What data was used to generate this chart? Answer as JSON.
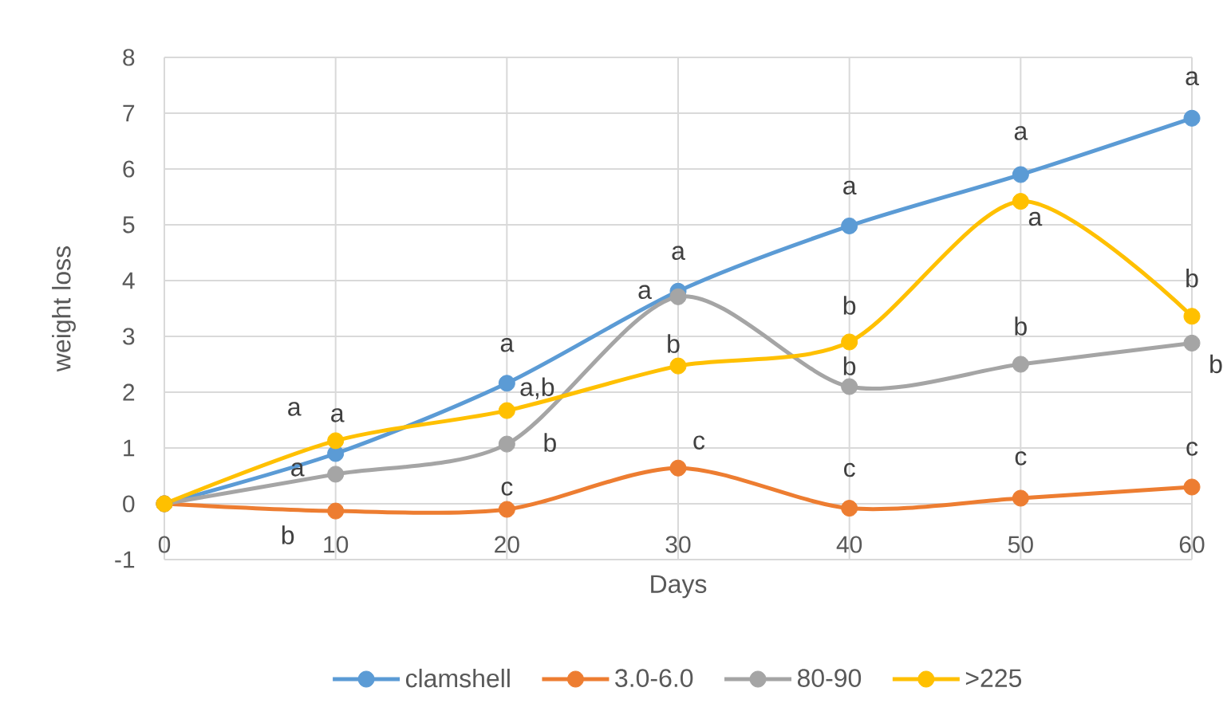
{
  "chart_data": {
    "type": "line",
    "xlabel": "Days",
    "ylabel": "weight loss",
    "x": [
      0,
      10,
      20,
      30,
      40,
      50,
      60
    ],
    "xlim": [
      0,
      60
    ],
    "xticks": [
      0,
      10,
      20,
      30,
      40,
      50,
      60
    ],
    "ylim": [
      -1,
      8
    ],
    "yticks": [
      -1,
      0,
      1,
      2,
      3,
      4,
      5,
      6,
      7,
      8
    ],
    "grid": true,
    "legend": "bottom",
    "marker": "circle",
    "line_style": "solid",
    "series": [
      {
        "name": "clamshell",
        "color": "#5b9bd5",
        "values": [
          0,
          0.9,
          2.16,
          3.81,
          4.98,
          5.9,
          6.91
        ]
      },
      {
        "name": "3.0-6.0",
        "color": "#ed7d31",
        "values": [
          0,
          -0.13,
          -0.1,
          0.64,
          -0.08,
          0.1,
          0.3
        ]
      },
      {
        "name": "80-90",
        "color": "#a5a5a5",
        "values": [
          0,
          0.53,
          1.07,
          3.71,
          2.1,
          2.5,
          2.88
        ]
      },
      {
        "name": ">225",
        "color": "#ffc000",
        "values": [
          0,
          1.13,
          1.67,
          2.47,
          2.9,
          5.42,
          3.36
        ]
      }
    ],
    "annotations": [
      {
        "text": "a",
        "x": 10,
        "y": 0.9
      },
      {
        "text": "a",
        "x": 10,
        "y": 1.13
      },
      {
        "text": "a",
        "x": 10,
        "y": 0.53
      },
      {
        "text": "b",
        "x": 10,
        "y": -0.13
      },
      {
        "text": "a",
        "x": 20,
        "y": 2.16
      },
      {
        "text": "a,b",
        "x": 20,
        "y": 1.67
      },
      {
        "text": "b",
        "x": 20,
        "y": 1.07
      },
      {
        "text": "c",
        "x": 20,
        "y": -0.1
      },
      {
        "text": "a",
        "x": 30,
        "y": 3.81
      },
      {
        "text": "a",
        "x": 30,
        "y": 3.71
      },
      {
        "text": "b",
        "x": 30,
        "y": 2.47
      },
      {
        "text": "c",
        "x": 30,
        "y": 0.64
      },
      {
        "text": "a",
        "x": 40,
        "y": 4.98
      },
      {
        "text": "b",
        "x": 40,
        "y": 2.9
      },
      {
        "text": "b",
        "x": 40,
        "y": 2.1
      },
      {
        "text": "c",
        "x": 40,
        "y": -0.08
      },
      {
        "text": "a",
        "x": 50,
        "y": 5.9
      },
      {
        "text": "a",
        "x": 50,
        "y": 5.42
      },
      {
        "text": "b",
        "x": 50,
        "y": 2.5
      },
      {
        "text": "c",
        "x": 50,
        "y": 0.1
      },
      {
        "text": "a",
        "x": 60,
        "y": 6.91
      },
      {
        "text": "b",
        "x": 60,
        "y": 3.36
      },
      {
        "text": "b",
        "x": 60,
        "y": 2.88
      },
      {
        "text": "c",
        "x": 60,
        "y": 0.3
      }
    ]
  }
}
